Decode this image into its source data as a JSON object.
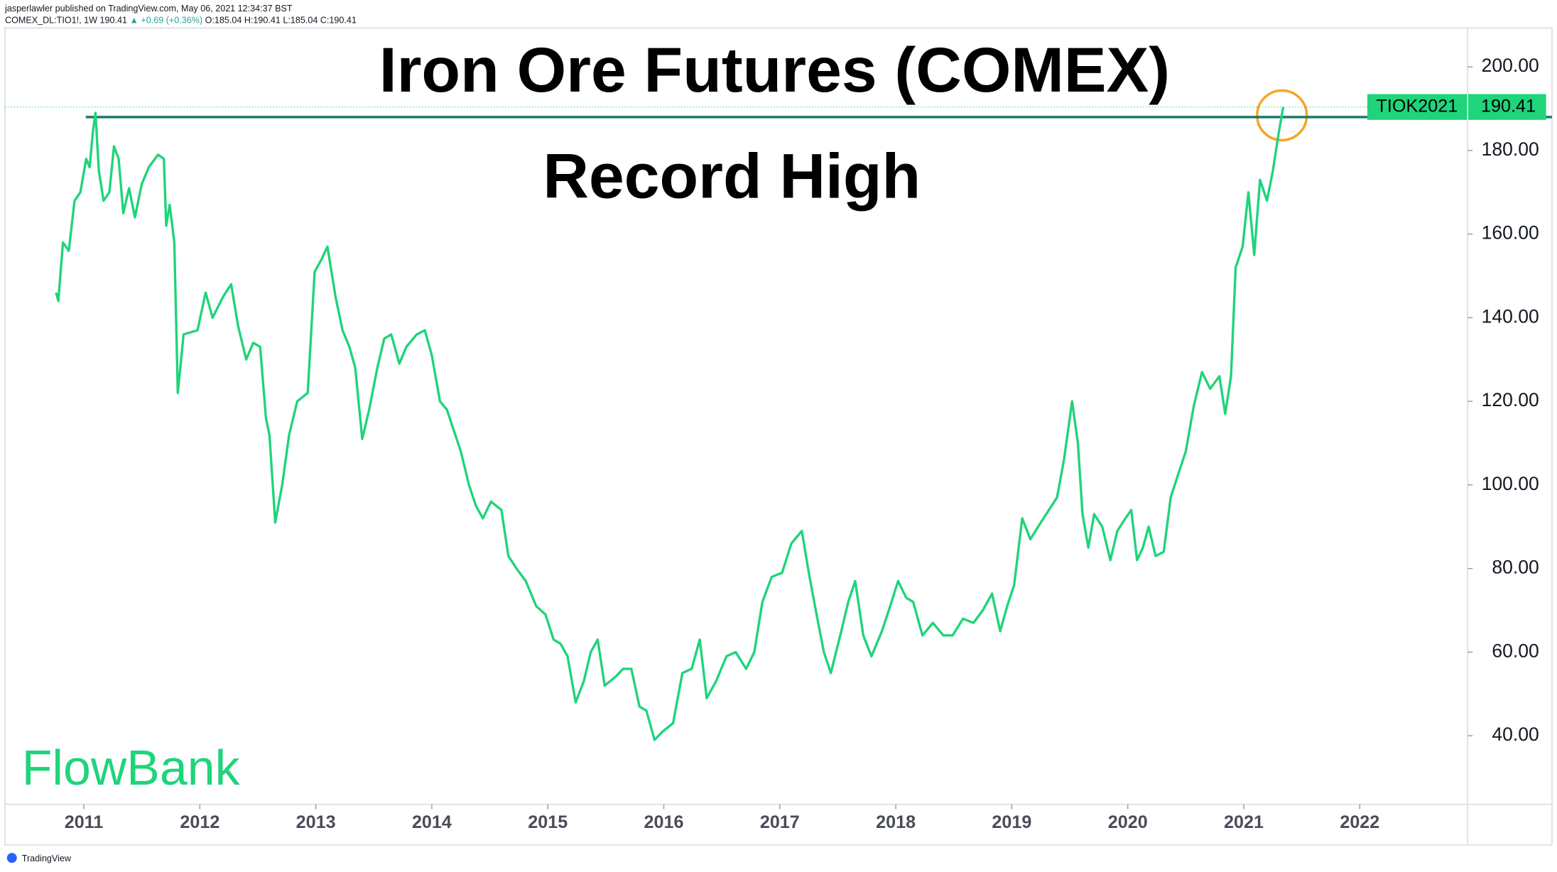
{
  "header": {
    "line1": "jasperlawler published on TradingView.com, May 06, 2021 12:34:37 BST",
    "symbol": "COMEX_DL:TIO1!, 1W  190.41",
    "change": "▲ +0.69 (+0.36%)",
    "ohlc": "O:185.04 H:190.41 L:185.04 C:190.41"
  },
  "footer": {
    "brand": "FlowBank",
    "source": "TradingView"
  },
  "chart_data": {
    "type": "line",
    "title": "Iron Ore Futures (COMEX)",
    "subtitle": "Record High",
    "x": [
      2010.76,
      2010.78,
      2010.82,
      2010.87,
      2010.92,
      2010.97,
      2011.02,
      2011.05,
      2011.08,
      2011.1,
      2011.13,
      2011.17,
      2011.22,
      2011.26,
      2011.3,
      2011.34,
      2011.39,
      2011.44,
      2011.5,
      2011.56,
      2011.64,
      2011.69,
      2011.71,
      2011.74,
      2011.78,
      2011.81,
      2011.86,
      2011.98,
      2012.05,
      2012.11,
      2012.2,
      2012.27,
      2012.33,
      2012.4,
      2012.46,
      2012.52,
      2012.57,
      2012.6,
      2012.65,
      2012.71,
      2012.77,
      2012.84,
      2012.93,
      2012.99,
      2013.05,
      2013.1,
      2013.17,
      2013.23,
      2013.29,
      2013.34,
      2013.4,
      2013.46,
      2013.53,
      2013.59,
      2013.65,
      2013.72,
      2013.78,
      2013.87,
      2013.94,
      2014.0,
      2014.07,
      2014.13,
      2014.19,
      2014.25,
      2014.32,
      2014.38,
      2014.44,
      2014.51,
      2014.6,
      2014.66,
      2014.73,
      2014.81,
      2014.9,
      2014.98,
      2015.05,
      2015.11,
      2015.17,
      2015.24,
      2015.31,
      2015.37,
      2015.43,
      2015.49,
      2015.58,
      2015.65,
      2015.72,
      2015.79,
      2015.85,
      2015.92,
      2015.99,
      2016.08,
      2016.16,
      2016.24,
      2016.31,
      2016.37,
      2016.45,
      2016.54,
      2016.62,
      2016.71,
      2016.78,
      2016.85,
      2016.93,
      2017.02,
      2017.1,
      2017.19,
      2017.25,
      2017.31,
      2017.38,
      2017.44,
      2017.53,
      2017.59,
      2017.65,
      2017.72,
      2017.79,
      2017.88,
      2017.94,
      2018.02,
      2018.09,
      2018.15,
      2018.23,
      2018.32,
      2018.41,
      2018.49,
      2018.58,
      2018.67,
      2018.75,
      2018.83,
      2018.9,
      2018.96,
      2019.02,
      2019.09,
      2019.16,
      2019.25,
      2019.32,
      2019.39,
      2019.45,
      2019.52,
      2019.57,
      2019.61,
      2019.66,
      2019.71,
      2019.78,
      2019.85,
      2019.91,
      2019.98,
      2020.03,
      2020.08,
      2020.13,
      2020.18,
      2020.24,
      2020.31,
      2020.37,
      2020.44,
      2020.5,
      2020.57,
      2020.64,
      2020.71,
      2020.79,
      2020.84,
      2020.89,
      2020.93,
      2020.99,
      2021.04,
      2021.09,
      2021.14,
      2021.2,
      2021.25,
      2021.3,
      2021.34
    ],
    "series": [
      {
        "name": "TIOK2021",
        "color": "#1fd47a",
        "values": [
          146,
          144,
          158,
          156,
          168,
          170,
          178,
          176,
          185,
          189,
          175,
          168,
          170,
          181,
          178,
          165,
          171,
          164,
          172,
          176,
          179,
          178,
          162,
          167,
          158,
          122,
          136,
          137,
          146,
          140,
          145,
          148,
          138,
          130,
          134,
          133,
          116,
          112,
          91,
          100,
          112,
          120,
          122,
          151,
          154,
          157,
          145,
          137,
          133,
          128,
          111,
          118,
          128,
          135,
          136,
          129,
          133,
          136,
          137,
          131,
          120,
          118,
          113,
          108,
          100,
          95,
          92,
          96,
          94,
          83,
          80,
          77,
          71,
          69,
          63,
          62,
          59,
          48,
          53,
          60,
          63,
          52,
          54,
          56,
          56,
          47,
          46,
          39,
          41,
          43,
          55,
          56,
          63,
          49,
          53,
          59,
          60,
          56,
          60,
          72,
          78,
          79,
          86,
          89,
          79,
          70,
          60,
          55,
          65,
          72,
          77,
          64,
          59,
          65,
          70,
          77,
          73,
          72,
          64,
          67,
          64,
          64,
          68,
          67,
          70,
          74,
          65,
          71,
          76,
          92,
          87,
          91,
          94,
          97,
          106,
          120,
          110,
          93,
          85,
          93,
          90,
          82,
          89,
          92,
          94,
          82,
          85,
          90,
          83,
          84,
          97,
          103,
          108,
          119,
          127,
          123,
          126,
          117,
          126,
          152,
          157,
          170,
          155,
          173,
          168,
          175,
          184,
          190.41
        ]
      }
    ],
    "record_level": 188,
    "xlim": [
      2010.32,
      2022.93
    ],
    "ylim": [
      23.6,
      209.3
    ],
    "xticks": [
      2011,
      2012,
      2013,
      2014,
      2015,
      2016,
      2017,
      2018,
      2019,
      2020,
      2021,
      2022
    ],
    "yticks": [
      {
        "value": 40,
        "label": "40.00"
      },
      {
        "value": 60,
        "label": "60.00"
      },
      {
        "value": 80,
        "label": "80.00"
      },
      {
        "value": 100,
        "label": "100.00"
      },
      {
        "value": 120,
        "label": "120.00"
      },
      {
        "value": 140,
        "label": "140.00"
      },
      {
        "value": 160,
        "label": "160.00"
      },
      {
        "value": 180,
        "label": "180.00"
      },
      {
        "value": 200,
        "label": "200.00"
      }
    ]
  }
}
